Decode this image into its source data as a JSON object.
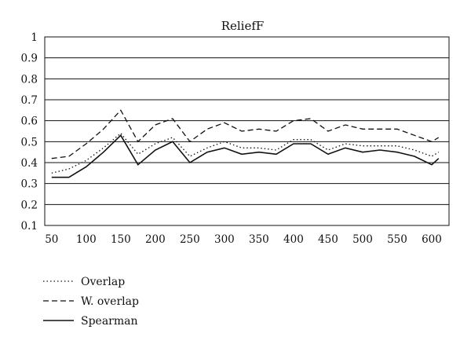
{
  "chart_data": {
    "type": "line",
    "title": "ReliefF",
    "xlabel": "",
    "ylabel": "",
    "x": [
      50,
      75,
      100,
      125,
      150,
      175,
      200,
      225,
      250,
      275,
      300,
      325,
      350,
      375,
      400,
      425,
      450,
      475,
      500,
      525,
      550,
      575,
      600,
      610
    ],
    "xticks": [
      50,
      100,
      150,
      200,
      250,
      300,
      350,
      400,
      450,
      500,
      550,
      600
    ],
    "xlim": [
      40,
      625
    ],
    "yticks": [
      "0.1",
      "0.2",
      "0.3",
      "0.4",
      "0.5",
      "0.6",
      "0.7",
      "0.8",
      "0.9",
      "1"
    ],
    "ylim": [
      0.1,
      1.0
    ],
    "grid": "horizontal",
    "legend_position": "bottom-left",
    "series": [
      {
        "name": "Overlap",
        "style": "dotted",
        "values": [
          0.35,
          0.37,
          0.41,
          0.47,
          0.54,
          0.44,
          0.49,
          0.52,
          0.43,
          0.47,
          0.5,
          0.47,
          0.47,
          0.46,
          0.51,
          0.51,
          0.46,
          0.49,
          0.48,
          0.48,
          0.48,
          0.46,
          0.43,
          0.45
        ]
      },
      {
        "name": "W. overlap",
        "style": "dashed",
        "values": [
          0.42,
          0.43,
          0.49,
          0.56,
          0.65,
          0.5,
          0.58,
          0.61,
          0.5,
          0.56,
          0.59,
          0.55,
          0.56,
          0.55,
          0.6,
          0.61,
          0.55,
          0.58,
          0.56,
          0.56,
          0.56,
          0.53,
          0.5,
          0.52
        ]
      },
      {
        "name": "Spearman",
        "style": "solid",
        "values": [
          0.33,
          0.33,
          0.38,
          0.45,
          0.53,
          0.39,
          0.46,
          0.5,
          0.4,
          0.45,
          0.47,
          0.44,
          0.45,
          0.44,
          0.49,
          0.49,
          0.44,
          0.47,
          0.45,
          0.46,
          0.45,
          0.43,
          0.39,
          0.42
        ]
      }
    ]
  }
}
